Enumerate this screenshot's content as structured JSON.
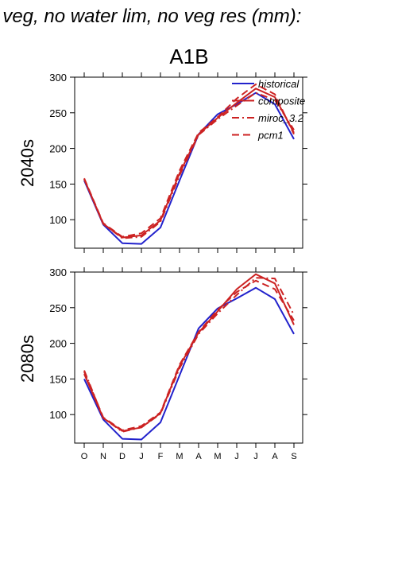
{
  "page_title": "f veg, no water lim, no veg res (mm):",
  "scenario": "A1B",
  "colors": {
    "historical": "#2222cc",
    "future": "#cc2222",
    "axis": "#000000"
  },
  "legend": [
    "historical",
    "composite",
    "miroc_3.2",
    "pcm1"
  ],
  "chart_data": [
    {
      "type": "line",
      "row_label": "2040s",
      "categories": [
        "O",
        "N",
        "D",
        "J",
        "F",
        "M",
        "A",
        "M",
        "J",
        "J",
        "A",
        "S"
      ],
      "ylim": [
        60,
        300
      ],
      "yticks": [
        100,
        150,
        200,
        250,
        300
      ],
      "grid": false,
      "legend_position": "top-right",
      "series": [
        {
          "name": "historical",
          "style": "solid",
          "color": "#2222cc",
          "values": [
            155,
            93,
            67,
            66,
            89,
            155,
            220,
            248,
            262,
            278,
            262,
            213
          ]
        },
        {
          "name": "composite",
          "style": "solid",
          "color": "#cc2222",
          "values": [
            157,
            94,
            75,
            78,
            99,
            165,
            220,
            243,
            264,
            284,
            272,
            222
          ]
        },
        {
          "name": "miroc_3.2",
          "style": "dashdot",
          "color": "#cc2222",
          "values": [
            157,
            94,
            74,
            76,
            97,
            162,
            219,
            241,
            260,
            278,
            268,
            226
          ]
        },
        {
          "name": "pcm1",
          "style": "dashed",
          "color": "#cc2222",
          "values": [
            158,
            95,
            76,
            81,
            102,
            169,
            222,
            244,
            270,
            290,
            276,
            220
          ]
        }
      ]
    },
    {
      "type": "line",
      "row_label": "2080s",
      "categories": [
        "O",
        "N",
        "D",
        "J",
        "F",
        "M",
        "A",
        "M",
        "J",
        "J",
        "A",
        "S"
      ],
      "ylim": [
        60,
        300
      ],
      "yticks": [
        100,
        150,
        200,
        250,
        300
      ],
      "grid": false,
      "legend_position": "none",
      "series": [
        {
          "name": "historical",
          "style": "solid",
          "color": "#2222cc",
          "values": [
            150,
            93,
            66,
            65,
            89,
            155,
            221,
            249,
            263,
            278,
            262,
            213
          ]
        },
        {
          "name": "composite",
          "style": "solid",
          "color": "#cc2222",
          "values": [
            157,
            95,
            77,
            82,
            102,
            168,
            215,
            245,
            276,
            297,
            284,
            226
          ]
        },
        {
          "name": "miroc_3.2",
          "style": "dashdot",
          "color": "#cc2222",
          "values": [
            162,
            95,
            76,
            82,
            101,
            165,
            213,
            242,
            268,
            292,
            291,
            240
          ]
        },
        {
          "name": "pcm1",
          "style": "dashed",
          "color": "#cc2222",
          "values": [
            160,
            96,
            78,
            84,
            103,
            170,
            216,
            247,
            272,
            288,
            276,
            232
          ]
        }
      ]
    }
  ]
}
